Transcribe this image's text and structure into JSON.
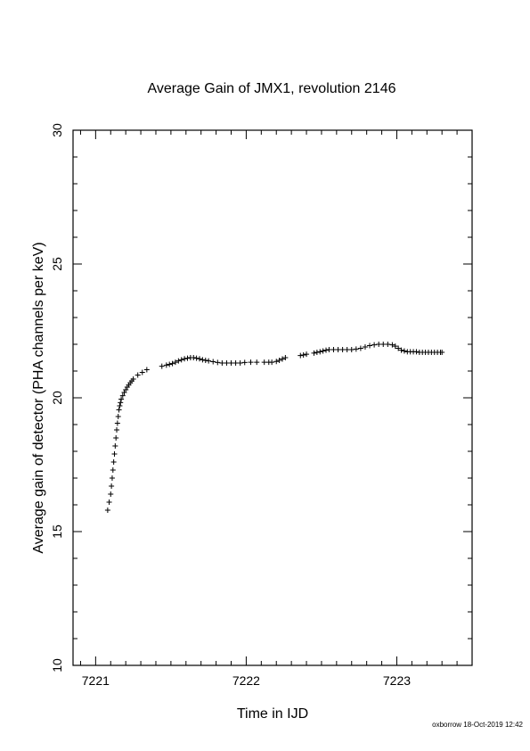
{
  "chart_data": {
    "type": "scatter",
    "title": "Average Gain of JMX1, revolution 2146",
    "xlabel": "Time in IJD",
    "ylabel": "Average gain of detector (PHA channels per keV)",
    "xlim": [
      7220.85,
      7223.5
    ],
    "ylim": [
      10,
      30
    ],
    "xticks": [
      7221,
      7222,
      7223
    ],
    "yticks": [
      10,
      15,
      20,
      25,
      30
    ],
    "marker": "plus",
    "grid": false,
    "series": [
      {
        "points": [
          [
            7221.08,
            15.8
          ],
          [
            7221.09,
            16.1
          ],
          [
            7221.1,
            16.4
          ],
          [
            7221.105,
            16.7
          ],
          [
            7221.11,
            17.0
          ],
          [
            7221.115,
            17.3
          ],
          [
            7221.12,
            17.6
          ],
          [
            7221.125,
            17.9
          ],
          [
            7221.13,
            18.2
          ],
          [
            7221.135,
            18.5
          ],
          [
            7221.14,
            18.8
          ],
          [
            7221.145,
            19.05
          ],
          [
            7221.15,
            19.3
          ],
          [
            7221.155,
            19.55
          ],
          [
            7221.16,
            19.7
          ],
          [
            7221.165,
            19.82
          ],
          [
            7221.17,
            19.95
          ],
          [
            7221.18,
            20.08
          ],
          [
            7221.19,
            20.2
          ],
          [
            7221.2,
            20.3
          ],
          [
            7221.21,
            20.4
          ],
          [
            7221.22,
            20.48
          ],
          [
            7221.23,
            20.56
          ],
          [
            7221.24,
            20.63
          ],
          [
            7221.25,
            20.7
          ],
          [
            7221.28,
            20.85
          ],
          [
            7221.31,
            20.95
          ],
          [
            7221.34,
            21.05
          ],
          [
            7221.44,
            21.18
          ],
          [
            7221.47,
            21.22
          ],
          [
            7221.49,
            21.25
          ],
          [
            7221.51,
            21.28
          ],
          [
            7221.53,
            21.33
          ],
          [
            7221.55,
            21.38
          ],
          [
            7221.57,
            21.42
          ],
          [
            7221.59,
            21.46
          ],
          [
            7221.61,
            21.48
          ],
          [
            7221.63,
            21.5
          ],
          [
            7221.65,
            21.5
          ],
          [
            7221.67,
            21.48
          ],
          [
            7221.69,
            21.46
          ],
          [
            7221.71,
            21.42
          ],
          [
            7221.73,
            21.4
          ],
          [
            7221.75,
            21.38
          ],
          [
            7221.78,
            21.35
          ],
          [
            7221.81,
            21.32
          ],
          [
            7221.84,
            21.3
          ],
          [
            7221.87,
            21.3
          ],
          [
            7221.9,
            21.3
          ],
          [
            7221.93,
            21.3
          ],
          [
            7221.96,
            21.3
          ],
          [
            7221.99,
            21.32
          ],
          [
            7222.03,
            21.33
          ],
          [
            7222.07,
            21.33
          ],
          [
            7222.12,
            21.33
          ],
          [
            7222.15,
            21.33
          ],
          [
            7222.17,
            21.33
          ],
          [
            7222.2,
            21.36
          ],
          [
            7222.22,
            21.4
          ],
          [
            7222.24,
            21.45
          ],
          [
            7222.26,
            21.5
          ],
          [
            7222.36,
            21.58
          ],
          [
            7222.38,
            21.6
          ],
          [
            7222.4,
            21.63
          ],
          [
            7222.45,
            21.67
          ],
          [
            7222.47,
            21.7
          ],
          [
            7222.49,
            21.72
          ],
          [
            7222.51,
            21.75
          ],
          [
            7222.53,
            21.78
          ],
          [
            7222.55,
            21.8
          ],
          [
            7222.58,
            21.8
          ],
          [
            7222.61,
            21.8
          ],
          [
            7222.64,
            21.8
          ],
          [
            7222.67,
            21.8
          ],
          [
            7222.7,
            21.8
          ],
          [
            7222.73,
            21.82
          ],
          [
            7222.76,
            21.85
          ],
          [
            7222.79,
            21.9
          ],
          [
            7222.82,
            21.95
          ],
          [
            7222.85,
            21.98
          ],
          [
            7222.88,
            22.0
          ],
          [
            7222.91,
            22.0
          ],
          [
            7222.94,
            22.0
          ],
          [
            7222.97,
            21.98
          ],
          [
            7222.99,
            21.93
          ],
          [
            7223.01,
            21.85
          ],
          [
            7223.03,
            21.78
          ],
          [
            7223.05,
            21.75
          ],
          [
            7223.07,
            21.72
          ],
          [
            7223.09,
            21.72
          ],
          [
            7223.11,
            21.72
          ],
          [
            7223.13,
            21.72
          ],
          [
            7223.15,
            21.7
          ],
          [
            7223.17,
            21.7
          ],
          [
            7223.19,
            21.7
          ],
          [
            7223.21,
            21.7
          ],
          [
            7223.23,
            21.7
          ],
          [
            7223.25,
            21.7
          ],
          [
            7223.27,
            21.7
          ],
          [
            7223.29,
            21.7
          ],
          [
            7223.3,
            21.7
          ]
        ]
      }
    ]
  },
  "footer": {
    "credit": "oxborrow 18-Oct-2019 12:42"
  }
}
